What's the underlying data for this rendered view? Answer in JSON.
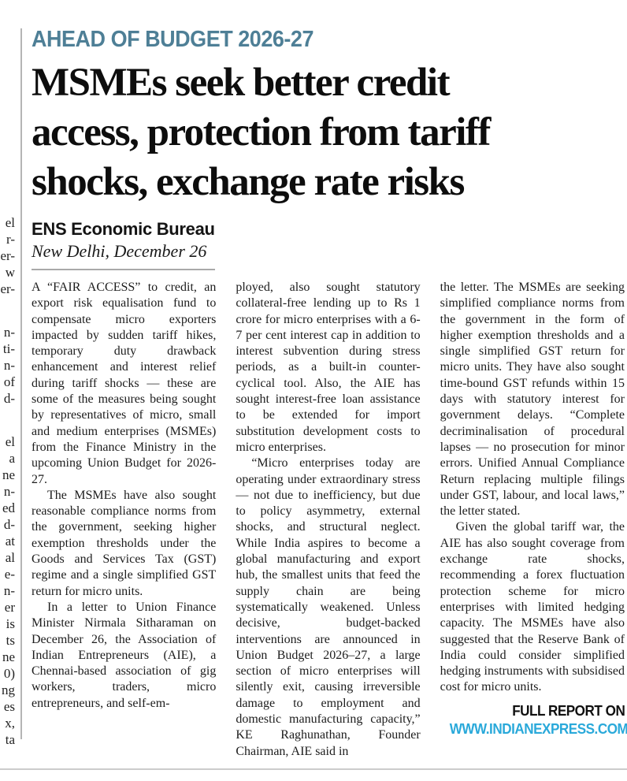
{
  "colors": {
    "kicker_teal": "#4e7f96",
    "website_cyan": "#2aa9da",
    "body_text": "#1c1c1c",
    "rule_gray": "#b5b5b5"
  },
  "kicker": "AHEAD OF BUDGET 2026-27",
  "headline_lines": [
    "MSMEs seek better credit",
    "access, protection from tariff",
    "shocks, exchange rate risks"
  ],
  "byline": {
    "author": "ENS Economic Bureau",
    "dateline": "New Delhi, December 26"
  },
  "left_strip": {
    "group1": [
      "el",
      "r-",
      "er-",
      "w",
      "er-"
    ],
    "group2": [
      "n-",
      "ti-",
      "n-",
      "of",
      "d-"
    ],
    "group3": [
      "el",
      "a",
      "ne",
      "n-",
      "ed",
      "d-",
      "at",
      "al",
      "e-",
      "n-",
      "er",
      "is",
      "ts",
      "ne",
      "0)",
      "ng",
      "es",
      "x,",
      "ta"
    ]
  },
  "columns": {
    "col1": {
      "p1": "A “FAIR ACCESS” to credit, an export risk equalisation fund to compensate micro exporters impacted by sudden tariff hikes, temporary duty drawback enhancement and interest relief during tariff shocks — these are some of the measures being sought by representatives of micro, small and medium enterprises (MSMEs) from the Finance Ministry in the upcoming Union Budget for 2026-27.",
      "p2": "The MSMEs have also sought reasonable compliance norms from the government, seeking higher exemption thresholds under the Goods and Services Tax (GST) regime and a single simplified GST return for micro units.",
      "p3": "In a letter to Union Finance Minister Nirmala Sitharaman on December 26, the Association of Indian Entrepreneurs (AIE), a Chennai-based association of gig workers, traders, micro entrepreneurs, and self-em-"
    },
    "col2": {
      "p1": "ployed, also sought statutory collateral-free lending up to Rs 1 crore for micro enterprises with a 6-7 per cent interest cap in addition to interest subvention during stress periods, as a built-in counter-cyclical tool. Also, the AIE has sought interest-free loan assistance to be extended for import substitution development costs to micro enterprises.",
      "p2": "“Micro enterprises today are operating under extraordinary stress — not due to inefficiency, but due to policy asymmetry, external shocks, and structural neglect. While India aspires to become a global manufacturing and export hub, the smallest units that feed the supply chain are being systematically weakened. Unless decisive, budget-backed interventions are announced in Union Budget 2026–27, a large section of micro enterprises will silently exit, causing irreversible damage to employment and domestic manufacturing capacity,” KE Raghunathan, Founder Chairman, AIE said in"
    },
    "col3": {
      "p1": "the letter. The MSMEs are seeking simplified compliance norms from the government in the form of higher exemption thresholds and a single simplified GST return for micro units. They have also sought time-bound GST refunds within 15 days with statutory interest for government delays. “Complete decriminalisation of procedural lapses — no prosecution for minor errors. Unified Annual Compliance Return replacing multiple filings under GST, labour, and local laws,” the letter stated.",
      "p2": "Given the global tariff war, the AIE has also sought coverage from exchange rate shocks, recommending a forex fluctuation protection scheme for micro enterprises with limited hedging capacity. The MSMEs have also suggested that the Reserve Bank of India could consider simplified hedging instruments with subsidised cost for micro units."
    }
  },
  "footer": {
    "full_report_label": "FULL REPORT ON",
    "website": "WWW.INDIANEXPRESS.COM"
  }
}
